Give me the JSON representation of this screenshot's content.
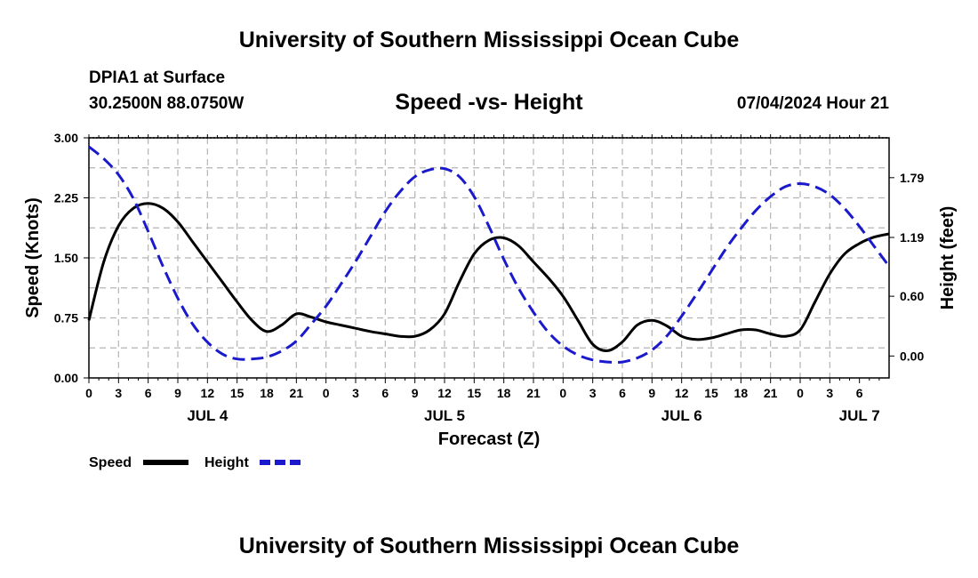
{
  "header": {
    "title": "University of Southern Mississippi Ocean Cube",
    "station": "DPIA1 at Surface",
    "coords": "30.2500N  88.0750W",
    "subtitle": "Speed -vs- Height",
    "timestamp": "07/04/2024 Hour 21"
  },
  "footer": {
    "title": "University of Southern Mississippi Ocean Cube"
  },
  "colors": {
    "speed": "#000000",
    "height": "#1a1acc",
    "grid": "#b4b4b4"
  },
  "chart_data": {
    "type": "line",
    "xlabel": "Forecast (Z)",
    "ylabel": "Speed (Knots)",
    "y2label": "Height (feet)",
    "x_hours_range": [
      0,
      81
    ],
    "ylim": [
      0,
      3.0
    ],
    "y2lim": [
      -0.22,
      2.19
    ],
    "yticks": [
      "0.00",
      "0.75",
      "1.50",
      "2.25",
      "3.00"
    ],
    "yticks_values": [
      0,
      0.75,
      1.5,
      2.25,
      3.0
    ],
    "y2ticks": [
      "0.00",
      "0.60",
      "1.19",
      "1.79"
    ],
    "y2ticks_values": [
      0,
      0.6,
      1.19,
      1.79
    ],
    "xticks": [
      "0",
      "3",
      "6",
      "9",
      "12",
      "15",
      "18",
      "21",
      "0",
      "3",
      "6",
      "9",
      "12",
      "15",
      "18",
      "21",
      "0",
      "3",
      "6",
      "9",
      "12",
      "15",
      "18",
      "21",
      "0",
      "3",
      "6"
    ],
    "days": [
      {
        "label": "JUL 4",
        "hour": 12
      },
      {
        "label": "JUL 5",
        "hour": 36
      },
      {
        "label": "JUL 6",
        "hour": 60
      },
      {
        "label": "JUL 7",
        "hour": 78
      }
    ],
    "series": [
      {
        "name": "Speed",
        "axis": "left",
        "x": [
          0,
          1.5,
          3,
          4.5,
          6,
          7.5,
          9,
          10.5,
          12,
          13.5,
          15,
          16.5,
          18,
          19.5,
          21,
          22.5,
          24,
          25.5,
          27,
          28.5,
          30,
          31.5,
          33,
          34.5,
          36,
          37.5,
          39,
          40.5,
          42,
          43.5,
          45,
          46.5,
          48,
          49.5,
          51,
          52.5,
          54,
          55.5,
          57,
          58.5,
          60,
          61.5,
          63,
          64.5,
          66,
          67.5,
          69,
          70.5,
          72,
          73.5,
          75,
          76.5,
          78,
          79.5,
          81
        ],
        "values": [
          0.72,
          1.45,
          1.9,
          2.12,
          2.18,
          2.12,
          1.95,
          1.7,
          1.45,
          1.2,
          0.95,
          0.72,
          0.58,
          0.66,
          0.8,
          0.76,
          0.7,
          0.66,
          0.62,
          0.58,
          0.55,
          0.52,
          0.52,
          0.6,
          0.8,
          1.2,
          1.55,
          1.72,
          1.75,
          1.65,
          1.45,
          1.25,
          1.02,
          0.72,
          0.42,
          0.34,
          0.45,
          0.66,
          0.72,
          0.65,
          0.52,
          0.48,
          0.5,
          0.55,
          0.6,
          0.6,
          0.55,
          0.52,
          0.6,
          0.95,
          1.3,
          1.55,
          1.68,
          1.76,
          1.8
        ]
      },
      {
        "name": "Height",
        "axis": "right",
        "x": [
          0,
          1.5,
          3,
          4.5,
          6,
          7.5,
          9,
          10.5,
          12,
          13.5,
          15,
          16.5,
          18,
          19.5,
          21,
          22.5,
          24,
          25.5,
          27,
          28.5,
          30,
          31.5,
          33,
          34.5,
          36,
          37.5,
          39,
          40.5,
          42,
          43.5,
          45,
          46.5,
          48,
          49.5,
          51,
          52.5,
          54,
          55.5,
          57,
          58.5,
          60,
          61.5,
          63,
          64.5,
          66,
          67.5,
          69,
          70.5,
          72,
          73.5,
          75,
          76.5,
          78,
          79.5,
          81
        ],
        "values": [
          2.1,
          1.98,
          1.82,
          1.58,
          1.25,
          0.9,
          0.58,
          0.32,
          0.14,
          0.02,
          -0.03,
          -0.03,
          -0.01,
          0.05,
          0.15,
          0.32,
          0.5,
          0.72,
          0.95,
          1.2,
          1.45,
          1.65,
          1.8,
          1.87,
          1.88,
          1.8,
          1.6,
          1.3,
          0.97,
          0.68,
          0.44,
          0.24,
          0.1,
          0.01,
          -0.04,
          -0.06,
          -0.06,
          -0.02,
          0.06,
          0.2,
          0.4,
          0.62,
          0.85,
          1.08,
          1.28,
          1.46,
          1.6,
          1.7,
          1.73,
          1.7,
          1.62,
          1.48,
          1.3,
          1.1,
          0.9
        ]
      }
    ]
  }
}
